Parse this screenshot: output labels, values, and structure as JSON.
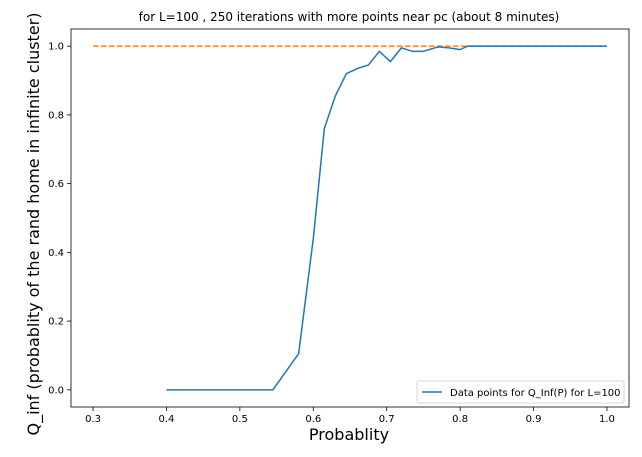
{
  "chart_data": {
    "type": "line",
    "title": "for L=100 , 250 iterations with more points near pc (about 8 minutes)",
    "xlabel": "Probablity",
    "ylabel": "Q_inf (probablity of the rand home in infinite cluster)",
    "xlim": [
      0.27,
      1.03
    ],
    "ylim": [
      -0.05,
      1.05
    ],
    "xticks": [
      0.3,
      0.4,
      0.5,
      0.6,
      0.7,
      0.8,
      0.9,
      1.0
    ],
    "xtick_labels": [
      "0.3",
      "0.4",
      "0.5",
      "0.6",
      "0.7",
      "0.8",
      "0.9",
      "1.0"
    ],
    "yticks": [
      0.0,
      0.2,
      0.4,
      0.6,
      0.8,
      1.0
    ],
    "ytick_labels": [
      "0.0",
      "0.2",
      "0.4",
      "0.6",
      "0.8",
      "1.0"
    ],
    "grid": false,
    "legend_position": "lower-right",
    "series": [
      {
        "name": "Data points for Q_Inf(P) for L=100",
        "color": "#1f77b4",
        "style": "solid",
        "x": [
          0.4,
          0.45,
          0.5,
          0.545,
          0.58,
          0.6,
          0.615,
          0.63,
          0.645,
          0.66,
          0.675,
          0.69,
          0.705,
          0.72,
          0.735,
          0.75,
          0.77,
          0.785,
          0.8,
          0.81,
          0.83,
          0.85,
          0.9,
          0.95,
          1.0
        ],
        "y": [
          0.0,
          0.0,
          0.0,
          0.0,
          0.105,
          0.44,
          0.76,
          0.855,
          0.92,
          0.935,
          0.945,
          0.985,
          0.955,
          0.995,
          0.985,
          0.985,
          0.998,
          0.995,
          0.99,
          1.0,
          1.0,
          1.0,
          1.0,
          1.0,
          1.0
        ]
      },
      {
        "color": "#ff7f0e",
        "style": "dashed",
        "x": [
          0.3,
          1.0
        ],
        "y": [
          1.0,
          1.0
        ]
      }
    ]
  }
}
